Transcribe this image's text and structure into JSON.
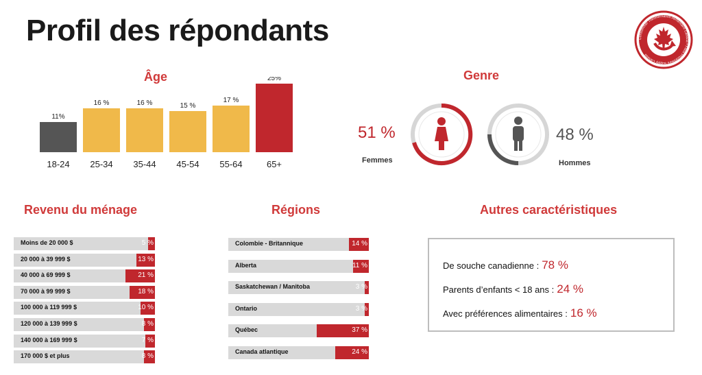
{
  "page": {
    "title": "Profil des répondants"
  },
  "colors": {
    "accent": "#c0272d",
    "gold": "#f0b94a",
    "dark": "#555555",
    "bar_bg": "#d9d9d9"
  },
  "icons": {
    "logo": "maple-leaf-circle-logo",
    "female": "female-figure-icon",
    "male": "male-figure-icon"
  },
  "logo": {
    "ring_text": "Consommer Transformation Alimentaire Canada • Food Processors Supply Canada"
  },
  "age": {
    "title": "Âge"
  },
  "genre": {
    "title": "Genre",
    "female": {
      "pct": "51 %",
      "label": "Femmes"
    },
    "male": {
      "pct": "48 %",
      "label": "Hommes"
    }
  },
  "revenu": {
    "title": "Revenu du ménage"
  },
  "regions": {
    "title": "Régions"
  },
  "autres": {
    "title": "Autres caractéristiques",
    "items": [
      {
        "label": "De souche canadienne  :",
        "value": "78 %"
      },
      {
        "label": "Parents d’enfants < 18 ans :",
        "value": "24 %"
      },
      {
        "label": "Avec préférences alimentaires :",
        "value": "16 %"
      }
    ]
  },
  "chart_data": [
    {
      "type": "bar",
      "title": "Âge",
      "categories": [
        "18-24",
        "25-34",
        "35-44",
        "45-54",
        "55-64",
        "65+"
      ],
      "values": [
        11,
        16,
        16,
        15,
        17,
        25
      ],
      "value_labels": [
        "11%",
        "16 %",
        "16 %",
        "15 %",
        "17 %",
        "25%"
      ],
      "bar_colors": [
        "#555555",
        "#f0b94a",
        "#f0b94a",
        "#f0b94a",
        "#f0b94a",
        "#c0272d"
      ],
      "ylim": [
        0,
        25
      ]
    },
    {
      "type": "bar",
      "orientation": "horizontal",
      "title": "Revenu du ménage",
      "categories": [
        "Moins de 20 000 $",
        "20 000 à 39 999 $",
        "40 000 à 69 999 $",
        "70 000 à 99 999 $",
        "100 000 à 119 999 $",
        "120 000 à 139 999 $",
        "140 000 à 169 999 $",
        "170 000 $ et plus"
      ],
      "values": [
        5,
        13,
        21,
        18,
        10,
        8,
        7,
        8
      ],
      "value_labels": [
        "5 %",
        "13 %",
        "21 %",
        "18 %",
        "10 %",
        "8 %",
        "7 %",
        "8 %"
      ],
      "xlim": [
        0,
        100
      ]
    },
    {
      "type": "bar",
      "orientation": "horizontal",
      "title": "Régions",
      "categories": [
        "Colombie - Britannique",
        "Alberta",
        "Saskatchewan / Manitoba",
        "Ontario",
        "Québec",
        "Canada atlantique"
      ],
      "values": [
        14,
        11,
        3,
        3,
        37,
        24
      ],
      "value_labels": [
        "14 %",
        "11 %",
        "3 %",
        "3 %",
        "37 %",
        "24 %"
      ],
      "xlim": [
        0,
        100
      ]
    },
    {
      "type": "pie",
      "title": "Genre",
      "categories": [
        "Femmes",
        "Hommes"
      ],
      "values": [
        51,
        48
      ]
    }
  ]
}
